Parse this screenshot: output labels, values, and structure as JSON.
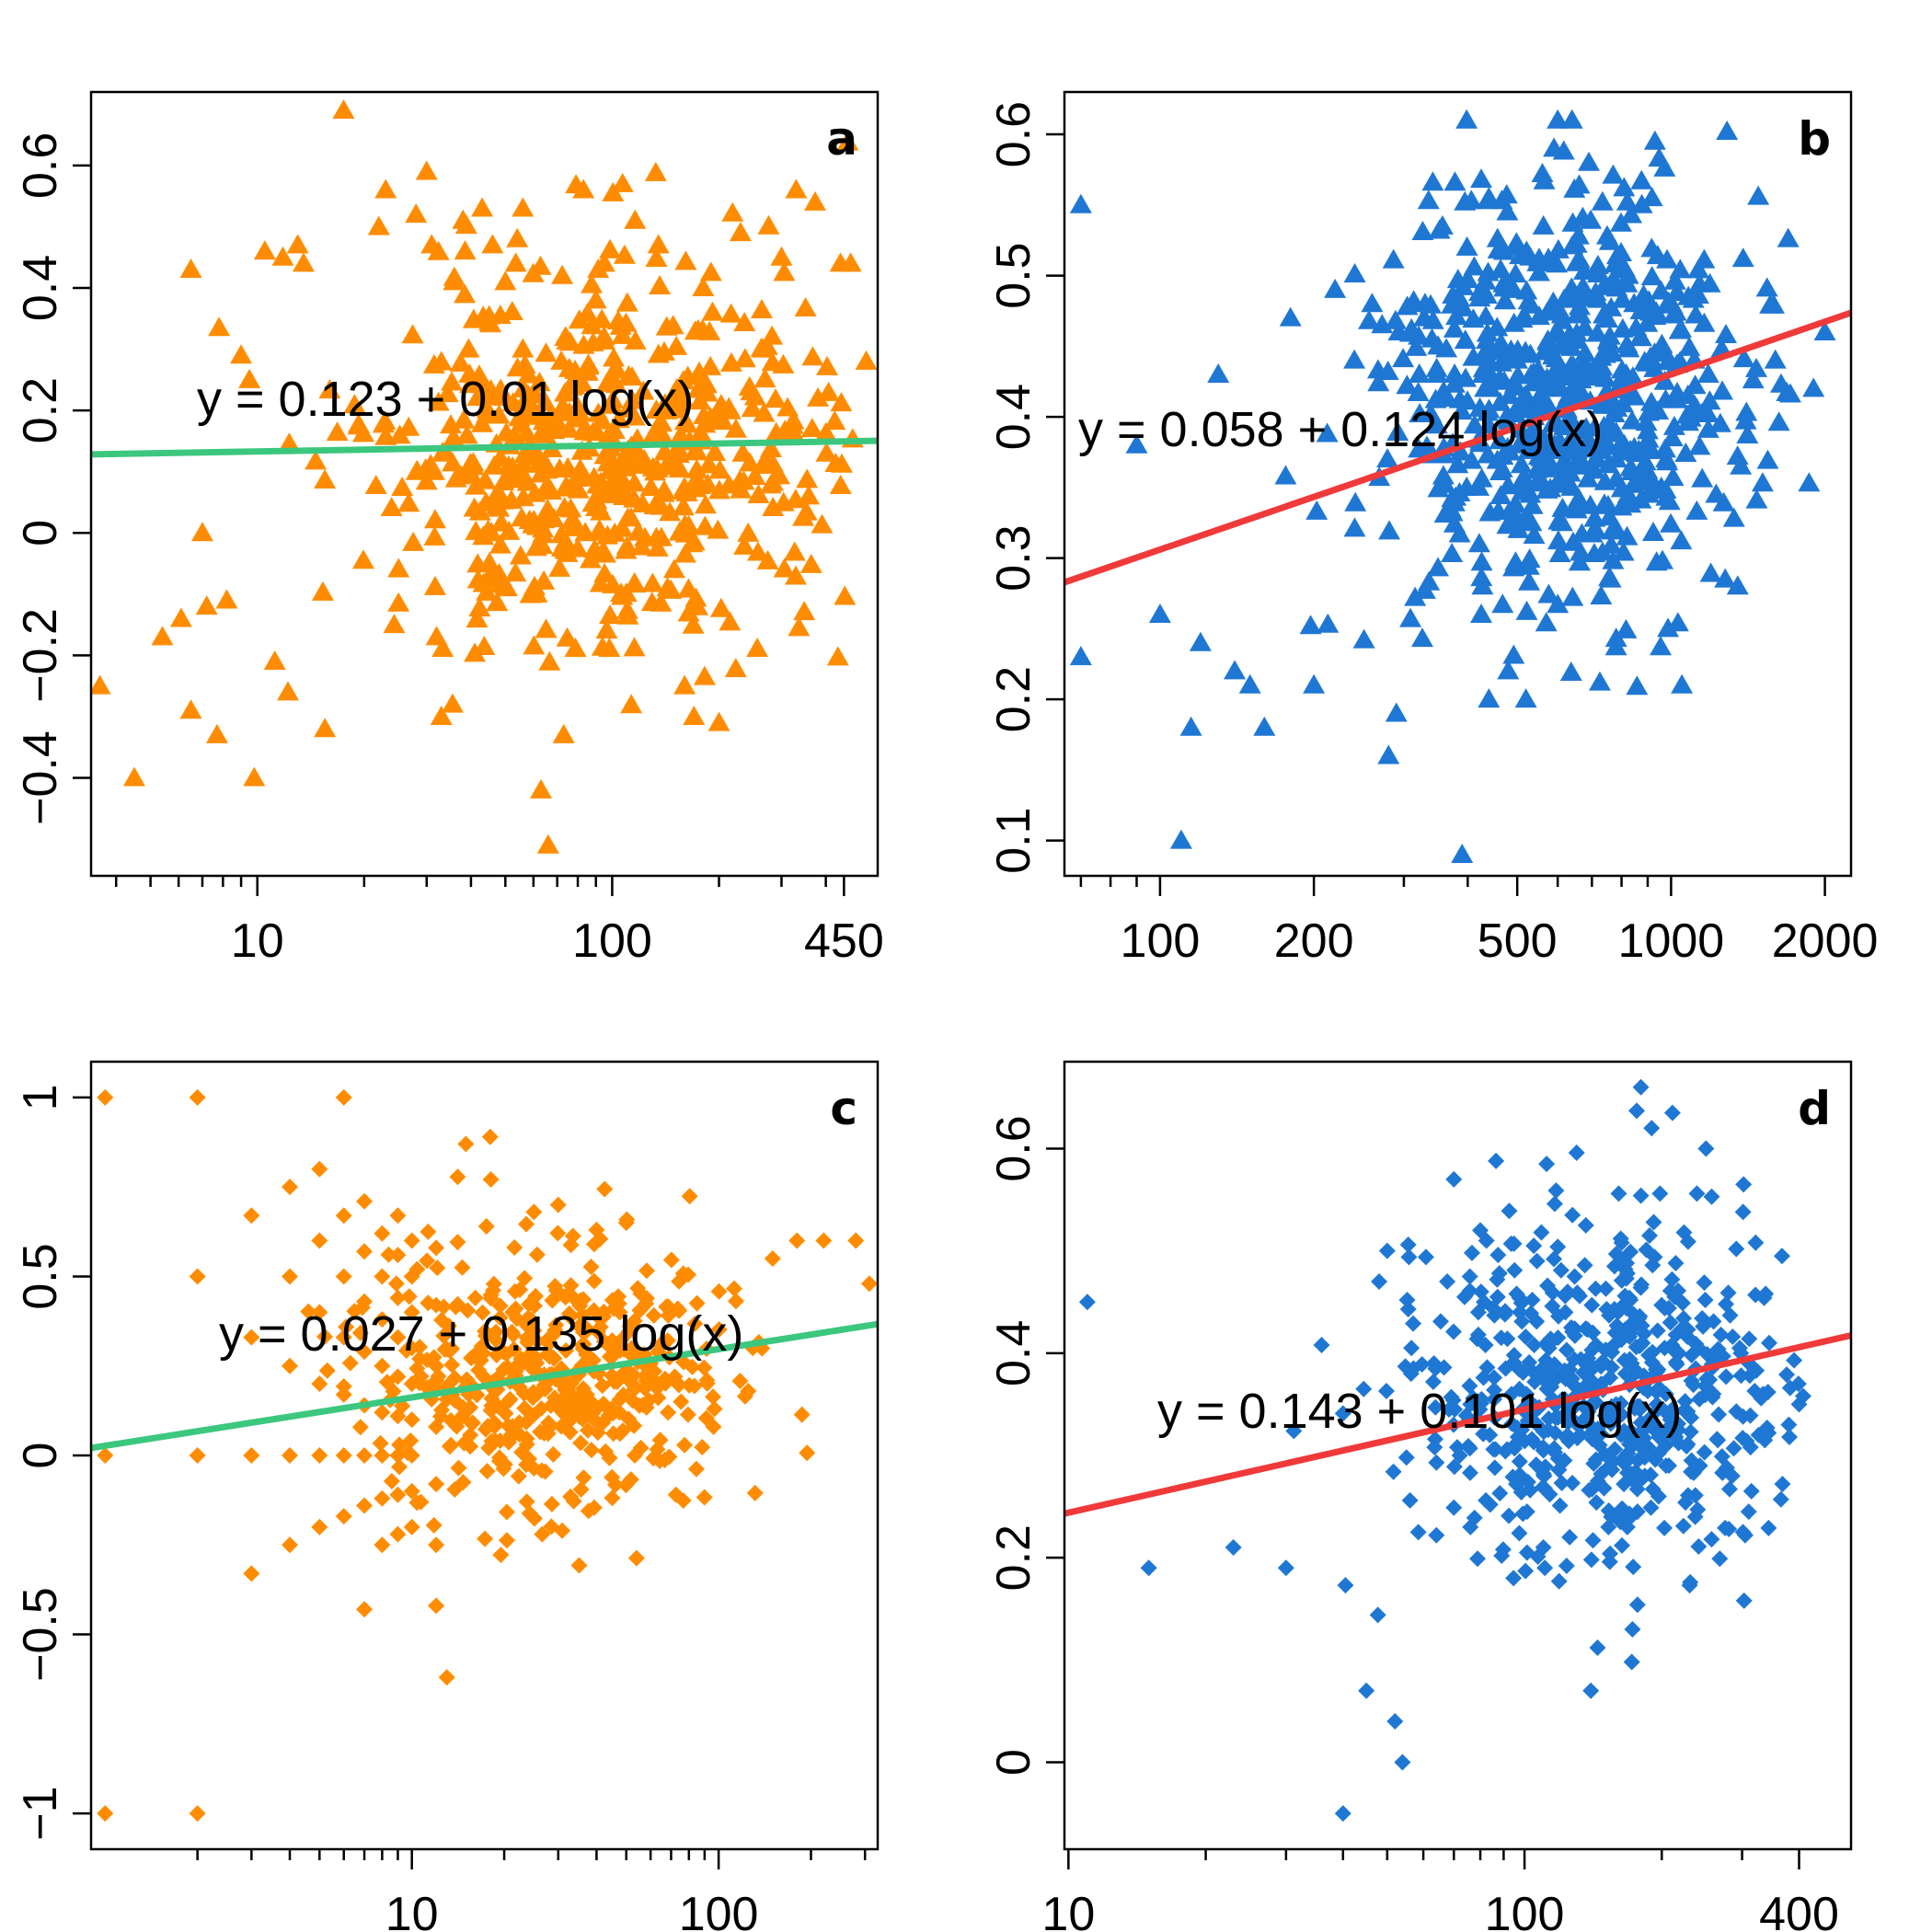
{
  "chart_data": [
    {
      "type": "scatter",
      "panel_label": "a",
      "marker": "triangle",
      "point_color": "#ff8c00",
      "fit_color": "#3cc77f",
      "x_scale": "log",
      "xlim": [
        3.4,
        560
      ],
      "ylim": [
        -0.56,
        0.72
      ],
      "x_ticks": [
        10,
        100,
        450
      ],
      "x_tick_labels": [
        "10",
        "100",
        "450"
      ],
      "x_minor_ticks": [
        4,
        5,
        6,
        7,
        8,
        9,
        20,
        30,
        40,
        50,
        60,
        70,
        80,
        90,
        200,
        300,
        400
      ],
      "y_ticks": [
        -0.4,
        -0.2,
        0,
        0.2,
        0.4,
        0.6
      ],
      "y_tick_labels": [
        "−0.4",
        "−0.2",
        "0",
        "0.2",
        "0.4",
        "0.6"
      ],
      "fit": {
        "intercept": 0.123,
        "slope": 0.01
      },
      "equation": "y =  0.123  +  0.01 log(x)",
      "cloud": {
        "center_x": 100,
        "center_y": 0.12,
        "spread_logx": 0.32,
        "spread_y": 0.15,
        "n": 560,
        "seed": 11,
        "xmin": 5,
        "xmax": 480
      },
      "points": [
        [
          3.6,
          -0.25
        ],
        [
          4.5,
          -0.4
        ],
        [
          5.4,
          -0.17
        ],
        [
          6.1,
          -0.14
        ],
        [
          6.5,
          0.43
        ],
        [
          6.5,
          -0.29
        ],
        [
          7.0,
          0.0
        ],
        [
          7.2,
          -0.12
        ],
        [
          7.7,
          -0.33
        ],
        [
          8.2,
          -0.11
        ],
        [
          9.0,
          0.29
        ],
        [
          9.5,
          0.25
        ],
        [
          9.8,
          -0.4
        ],
        [
          10.5,
          0.46
        ],
        [
          11.2,
          -0.21
        ],
        [
          11.8,
          0.45
        ],
        [
          12.2,
          -0.26
        ],
        [
          13.0,
          0.47
        ],
        [
          13.5,
          0.44
        ],
        [
          15.5,
          -0.32
        ],
        [
          17.5,
          0.69
        ],
        [
          22.0,
          0.5
        ],
        [
          23.0,
          0.56
        ],
        [
          28.0,
          0.52
        ],
        [
          30.0,
          0.59
        ],
        [
          31.0,
          0.47
        ],
        [
          32.0,
          -0.17
        ],
        [
          33.0,
          -0.3
        ],
        [
          35.5,
          -0.28
        ],
        [
          38.0,
          0.51
        ],
        [
          43.0,
          0.53
        ],
        [
          46.0,
          0.47
        ],
        [
          50.0,
          0.41
        ],
        [
          54.0,
          0.48
        ],
        [
          56.0,
          0.53
        ],
        [
          63.0,
          -0.42
        ],
        [
          66.0,
          -0.51
        ],
        [
          73.0,
          -0.33
        ],
        [
          83.0,
          0.56
        ],
        [
          90.0,
          0.38
        ],
        [
          95.0,
          0.44
        ],
        [
          107.0,
          0.57
        ],
        [
          116.0,
          0.51
        ],
        [
          135.0,
          0.47
        ],
        [
          160.0,
          -0.25
        ],
        [
          170.0,
          -0.3
        ],
        [
          200.0,
          -0.31
        ],
        [
          230.0,
          0.49
        ],
        [
          300.0,
          0.45
        ],
        [
          330.0,
          0.56
        ],
        [
          380.0,
          0.22
        ],
        [
          440.0,
          0.44
        ],
        [
          470.0,
          0.44
        ],
        [
          520.0,
          0.28
        ]
      ]
    },
    {
      "type": "scatter",
      "panel_label": "b",
      "marker": "triangle",
      "point_color": "#1f77d4",
      "fit_color": "#f03a3a",
      "x_scale": "log",
      "xlim": [
        65,
        2250
      ],
      "ylim": [
        0.075,
        0.63
      ],
      "x_ticks": [
        100,
        200,
        500,
        1000,
        2000
      ],
      "x_tick_labels": [
        "100",
        "200",
        "500",
        "1000",
        "2000"
      ],
      "x_minor_ticks": [
        70,
        80,
        90,
        300,
        400,
        600,
        700,
        800,
        900
      ],
      "y_ticks": [
        0.1,
        0.2,
        0.3,
        0.4,
        0.5,
        0.6
      ],
      "y_tick_labels": [
        "0.1",
        "0.2",
        "0.3",
        "0.4",
        "0.5",
        "0.6"
      ],
      "fit": {
        "intercept": 0.058,
        "slope": 0.124
      },
      "equation": "y =  0.058  +  0.124 log(x)",
      "cloud": {
        "center_x": 620,
        "center_y": 0.41,
        "spread_logx": 0.18,
        "spread_y": 0.07,
        "n": 650,
        "seed": 23,
        "xmin": 120,
        "xmax": 1900
      },
      "points": [
        [
          70.0,
          0.55
        ],
        [
          70.0,
          0.23
        ],
        [
          90.0,
          0.38
        ],
        [
          100.0,
          0.26
        ],
        [
          110.0,
          0.1
        ],
        [
          115.0,
          0.18
        ],
        [
          120.0,
          0.24
        ],
        [
          130.0,
          0.43
        ],
        [
          140.0,
          0.22
        ],
        [
          150.0,
          0.21
        ],
        [
          160.0,
          0.18
        ],
        [
          180.0,
          0.47
        ],
        [
          200.0,
          0.21
        ],
        [
          220.0,
          0.49
        ],
        [
          240.0,
          0.44
        ],
        [
          260.0,
          0.48
        ],
        [
          280.0,
          0.16
        ],
        [
          290.0,
          0.19
        ],
        [
          330.0,
          0.48
        ],
        [
          350.0,
          0.45
        ],
        [
          390.0,
          0.09
        ],
        [
          420.0,
          0.35
        ],
        [
          440.0,
          0.2
        ],
        [
          480.0,
          0.22
        ],
        [
          520.0,
          0.2
        ],
        [
          600.0,
          0.61
        ],
        [
          640.0,
          0.61
        ],
        [
          1050.0,
          0.21
        ],
        [
          1350.0,
          0.28
        ],
        [
          1600.0,
          0.44
        ],
        [
          1900.0,
          0.42
        ],
        [
          2000.0,
          0.46
        ]
      ]
    },
    {
      "type": "scatter",
      "panel_label": "c",
      "marker": "diamond",
      "point_color": "#ff8c00",
      "fit_color": "#3cc77f",
      "x_scale": "log",
      "xlim": [
        0.9,
        330
      ],
      "ylim": [
        -1.1,
        1.1
      ],
      "x_ticks": [
        10,
        100
      ],
      "x_tick_labels": [
        "10",
        "100"
      ],
      "x_minor_ticks": [
        2,
        3,
        4,
        5,
        6,
        7,
        8,
        9,
        20,
        30,
        40,
        50,
        60,
        70,
        80,
        90,
        200,
        300
      ],
      "y_ticks": [
        -1,
        -0.5,
        0,
        0.5,
        1
      ],
      "y_tick_labels": [
        "−1",
        "−0.5",
        "0",
        "0.5",
        "1"
      ],
      "fit": {
        "intercept": 0.027,
        "slope": 0.135
      },
      "equation": "y =  0.027  +  0.135 log(x)",
      "cloud": {
        "center_x": 30,
        "center_y": 0.22,
        "spread_logx": 0.28,
        "spread_y": 0.18,
        "n": 480,
        "seed": 37,
        "xmin": 3,
        "xmax": 300
      },
      "points": [
        [
          1.0,
          1.0
        ],
        [
          1.0,
          0.0
        ],
        [
          1.0,
          -1.0
        ],
        [
          2.0,
          1.0
        ],
        [
          2.0,
          0.5
        ],
        [
          2.0,
          0.0
        ],
        [
          2.0,
          -1.0
        ],
        [
          3.0,
          0.67
        ],
        [
          3.0,
          0.33
        ],
        [
          3.0,
          0.0
        ],
        [
          3.0,
          -0.33
        ],
        [
          4.0,
          0.75
        ],
        [
          4.0,
          0.5
        ],
        [
          4.0,
          0.25
        ],
        [
          4.0,
          0.0
        ],
        [
          4.0,
          -0.25
        ],
        [
          5.0,
          0.8
        ],
        [
          5.0,
          0.6
        ],
        [
          5.0,
          0.4
        ],
        [
          5.0,
          0.2
        ],
        [
          5.0,
          0.0
        ],
        [
          5.0,
          -0.2
        ],
        [
          6.0,
          1.0
        ],
        [
          6.0,
          0.67
        ],
        [
          6.0,
          0.5
        ],
        [
          6.0,
          0.33
        ],
        [
          6.0,
          0.17
        ],
        [
          6.0,
          0.0
        ],
        [
          6.0,
          -0.17
        ],
        [
          7.0,
          0.71
        ],
        [
          7.0,
          0.57
        ],
        [
          7.0,
          0.43
        ],
        [
          7.0,
          0.29
        ],
        [
          7.0,
          0.14
        ],
        [
          7.0,
          0.0
        ],
        [
          7.0,
          -0.14
        ],
        [
          7.0,
          -0.43
        ],
        [
          8.0,
          0.62
        ],
        [
          8.0,
          0.5
        ],
        [
          8.0,
          0.38
        ],
        [
          8.0,
          0.25
        ],
        [
          8.0,
          0.12
        ],
        [
          8.0,
          0.0
        ],
        [
          8.0,
          -0.12
        ],
        [
          8.0,
          -0.25
        ],
        [
          9.0,
          0.67
        ],
        [
          9.0,
          0.56
        ],
        [
          9.0,
          0.44
        ],
        [
          9.0,
          0.33
        ],
        [
          9.0,
          0.22
        ],
        [
          9.0,
          0.11
        ],
        [
          9.0,
          0.0
        ],
        [
          9.0,
          -0.11
        ],
        [
          9.0,
          -0.22
        ],
        [
          10.0,
          0.6
        ],
        [
          10.0,
          0.5
        ],
        [
          10.0,
          0.4
        ],
        [
          10.0,
          0.3
        ],
        [
          10.0,
          0.2
        ],
        [
          10.0,
          0.1
        ],
        [
          10.0,
          0.0
        ],
        [
          10.0,
          -0.1
        ],
        [
          10.0,
          -0.2
        ],
        [
          12.0,
          0.58
        ],
        [
          12.0,
          0.42
        ],
        [
          12.0,
          0.25
        ],
        [
          12.0,
          0.08
        ],
        [
          12.0,
          -0.08
        ],
        [
          12.0,
          -0.25
        ],
        [
          12.0,
          -0.42
        ],
        [
          13.0,
          -0.62
        ],
        [
          15.0,
          0.87
        ],
        [
          18.0,
          0.89
        ],
        [
          25.0,
          0.68
        ],
        [
          30.0,
          0.7
        ],
        [
          40.0,
          0.63
        ],
        [
          50.0,
          0.65
        ],
        [
          150.0,
          0.55
        ],
        [
          180.0,
          0.6
        ],
        [
          220.0,
          0.6
        ],
        [
          280.0,
          0.6
        ],
        [
          310.0,
          0.48
        ]
      ]
    },
    {
      "type": "scatter",
      "panel_label": "d",
      "marker": "diamond",
      "point_color": "#1f77d4",
      "fit_color": "#f03a3a",
      "x_scale": "log",
      "xlim": [
        9.8,
        520
      ],
      "ylim": [
        -0.085,
        0.685
      ],
      "x_ticks": [
        10,
        100,
        400
      ],
      "x_tick_labels": [
        "10",
        "100",
        "400"
      ],
      "x_minor_ticks": [
        20,
        30,
        40,
        50,
        60,
        70,
        80,
        90,
        200,
        300
      ],
      "y_ticks": [
        0,
        0.2,
        0.4,
        0.6
      ],
      "y_tick_labels": [
        "0",
        "0.2",
        "0.4",
        "0.6"
      ],
      "fit": {
        "intercept": 0.143,
        "slope": 0.101
      },
      "equation": "y =  0.143  +  0.101 log(x)",
      "cloud": {
        "center_x": 150,
        "center_y": 0.36,
        "spread_logx": 0.2,
        "spread_y": 0.085,
        "n": 620,
        "seed": 53,
        "xmin": 30,
        "xmax": 420
      },
      "points": [
        [
          11.0,
          0.45
        ],
        [
          15.0,
          0.19
        ],
        [
          23.0,
          0.21
        ],
        [
          30.0,
          0.19
        ],
        [
          40.0,
          -0.05
        ],
        [
          45.0,
          0.07
        ],
        [
          48.0,
          0.47
        ],
        [
          50.0,
          0.5
        ],
        [
          52.0,
          0.04
        ],
        [
          54.0,
          0.0
        ],
        [
          70.0,
          0.57
        ],
        [
          80.0,
          0.52
        ],
        [
          180.0,
          0.66
        ],
        [
          190.0,
          0.62
        ],
        [
          250.0,
          0.6
        ],
        [
          400.0,
          0.35
        ]
      ]
    }
  ]
}
